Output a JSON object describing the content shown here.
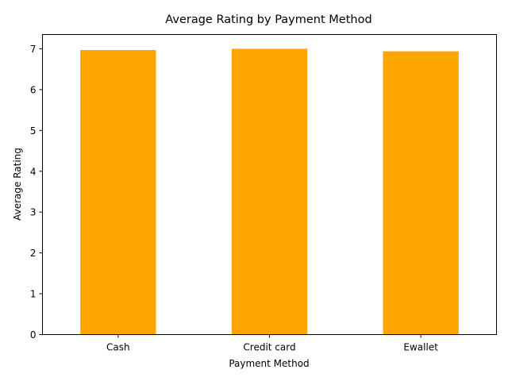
{
  "chart_data": {
    "type": "bar",
    "title": "Average Rating by Payment Method",
    "xlabel": "Payment Method",
    "ylabel": "Average Rating",
    "categories": [
      "Cash",
      "Credit card",
      "Ewallet"
    ],
    "values": [
      6.97,
      7.0,
      6.94
    ],
    "ylim": [
      0,
      7.35
    ],
    "yticks": [
      0,
      1,
      2,
      3,
      4,
      5,
      6,
      7
    ],
    "bar_color": "#FFA500",
    "grid": false,
    "legend": "none"
  }
}
